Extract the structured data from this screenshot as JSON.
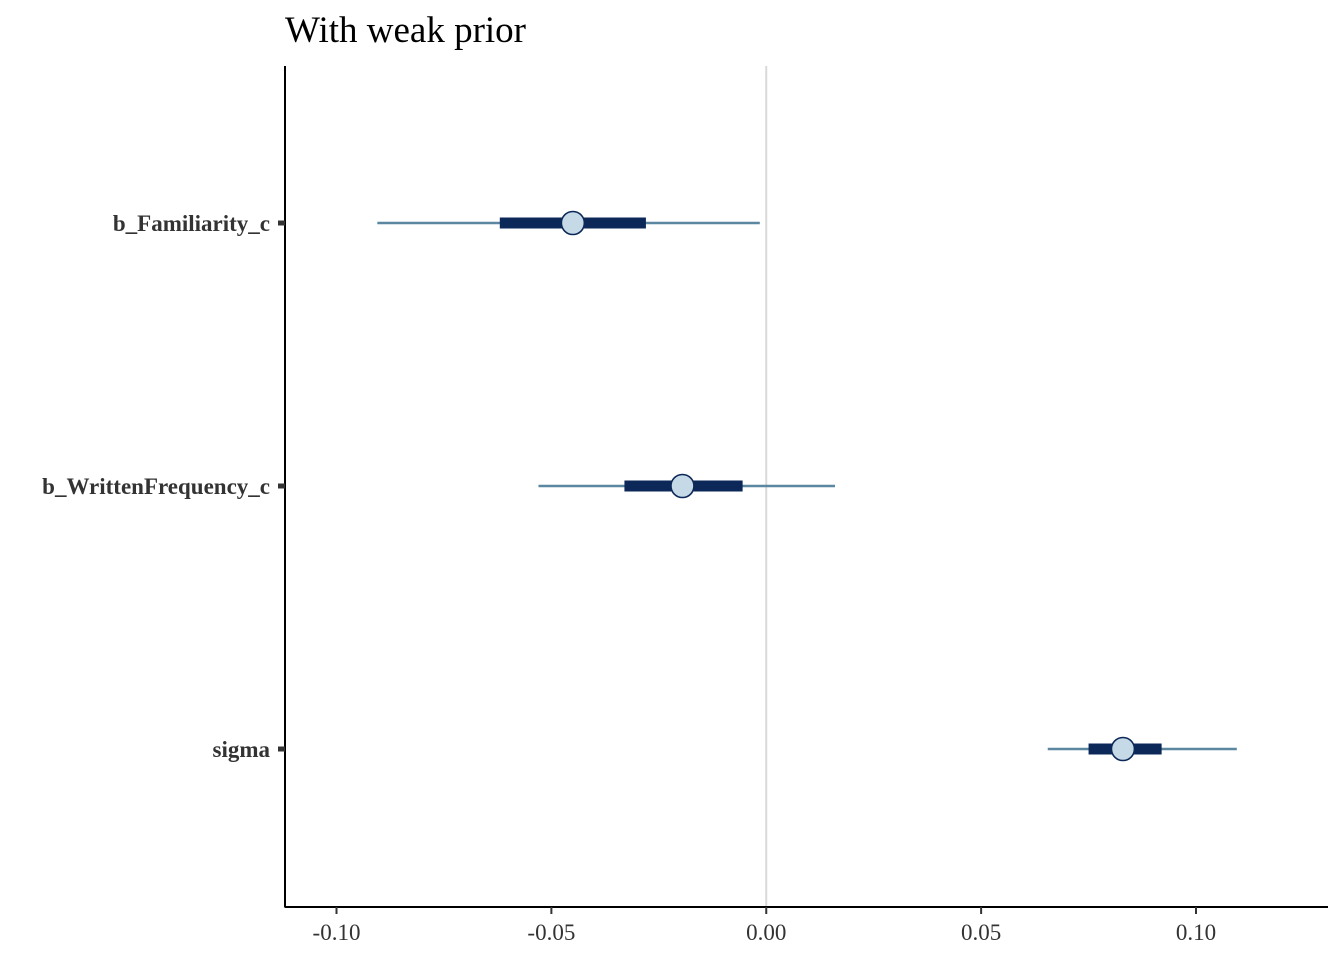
{
  "chart_data": {
    "type": "interval",
    "title": "With weak prior",
    "xlabel": "",
    "ylabel": "",
    "xlim": [
      -0.112,
      0.1305
    ],
    "x_ticks": [
      -0.1,
      -0.05,
      0.0,
      0.05,
      0.1
    ],
    "x_tick_labels": [
      "-0.10",
      "-0.05",
      "0.00",
      "0.05",
      "0.10"
    ],
    "reference_line": 0.0,
    "grid": false,
    "colors": {
      "outer_interval": "#5b87a0",
      "inner_interval": "#0b2858",
      "point_fill": "#c6d9e7",
      "point_stroke": "#0b2858",
      "reference_line": "#d9d9d9"
    },
    "parameters": [
      {
        "name": "b_Familiarity_c",
        "estimate": -0.045,
        "inner": [
          -0.062,
          -0.028
        ],
        "outer": [
          -0.0905,
          -0.0015
        ]
      },
      {
        "name": "b_WrittenFrequency_c",
        "estimate": -0.0195,
        "inner": [
          -0.033,
          -0.0055
        ],
        "outer": [
          -0.053,
          0.016
        ]
      },
      {
        "name": "sigma",
        "estimate": 0.083,
        "inner": [
          0.075,
          0.092
        ],
        "outer": [
          0.0655,
          0.1095
        ]
      }
    ]
  }
}
